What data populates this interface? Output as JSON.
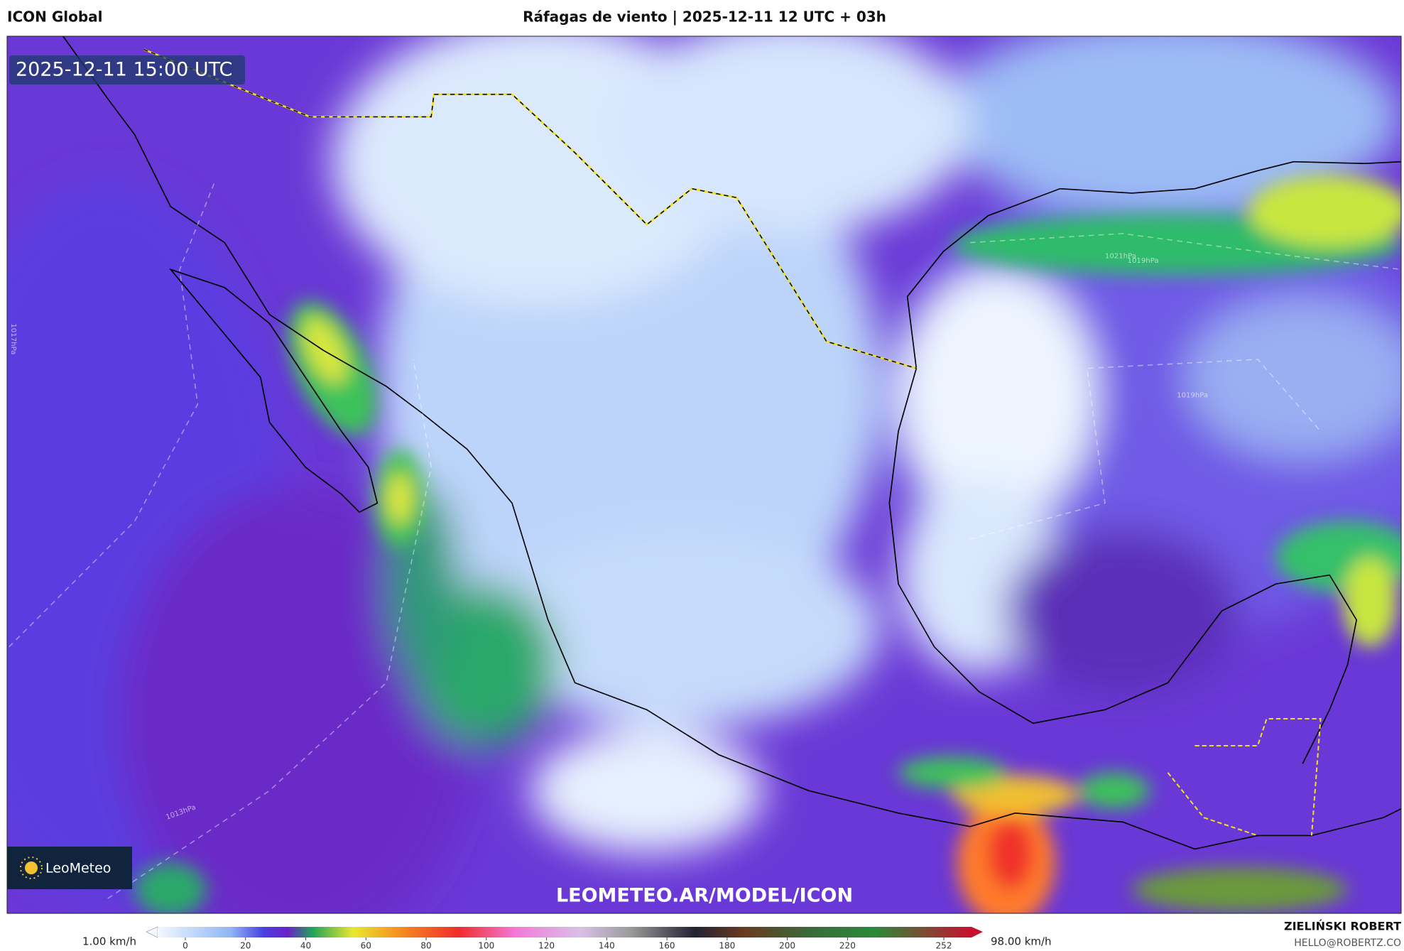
{
  "header": {
    "model": "ICON Global",
    "title": "Ráfagas de viento | 2025-12-11 12 UTC + 03h"
  },
  "map": {
    "valid_time": "2025-12-11 15:00 UTC",
    "watermark": "LEOMETEO.AR/MODEL/ICON",
    "logo": "LeoMeteo",
    "isobar_labels": [
      "1019hPa",
      "1021hPa",
      "1017hPa",
      "1013hPa",
      "1019hPa"
    ]
  },
  "colorbar": {
    "min_label": "1.00 km/h",
    "max_label": "98.00 km/h",
    "xlim": [
      0,
      252
    ],
    "ticks": [
      0,
      20,
      40,
      60,
      80,
      100,
      120,
      140,
      160,
      180,
      200,
      220,
      252
    ]
  },
  "credit": {
    "author": "ZIELIŃSKI ROBERT",
    "contact": "HELLO@ROBERTZ.CO"
  }
}
